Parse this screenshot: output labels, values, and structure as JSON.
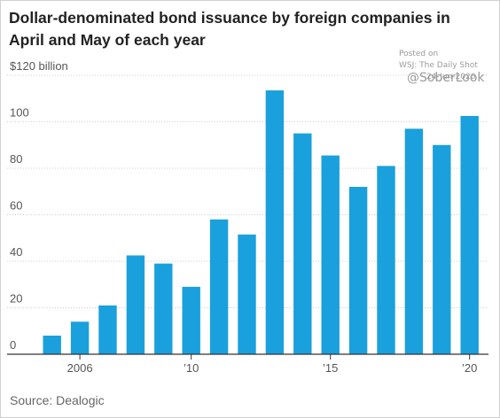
{
  "title": "Dollar-denominated bond issuance by foreign companies in April and May of each year",
  "watermark": {
    "posted": "Posted on",
    "source": "WSJ: The Daily Shot",
    "date": "24-Jun-2020",
    "handle": "@SoberLook"
  },
  "footnote": "Source: Dealogic",
  "colors": {
    "bar": "#1aa0dc",
    "grid": "#cccccc",
    "axis": "#333333"
  },
  "chart_data": {
    "type": "bar",
    "categories": [
      "2005",
      "2006",
      "2007",
      "2008",
      "2009",
      "2010",
      "2011",
      "2012",
      "2013",
      "2014",
      "2015",
      "2016",
      "2017",
      "2018",
      "2019",
      "2020"
    ],
    "values": [
      8,
      14,
      21,
      42.5,
      39,
      29,
      58,
      51.5,
      113.5,
      95,
      85.5,
      72,
      81,
      97,
      90,
      102.5
    ],
    "x_tick_labels": [
      {
        "category": "2006",
        "label": "2006"
      },
      {
        "category": "2010",
        "label": "’10"
      },
      {
        "category": "2015",
        "label": "’15"
      },
      {
        "category": "2020",
        "label": "’20"
      }
    ],
    "y_ticks": [
      0,
      20,
      40,
      60,
      80,
      100,
      120
    ],
    "y_tick_labels": [
      "0",
      "20",
      "40",
      "60",
      "80",
      "100",
      "$120 billion"
    ],
    "ylim": [
      0,
      120
    ],
    "grid": true
  }
}
